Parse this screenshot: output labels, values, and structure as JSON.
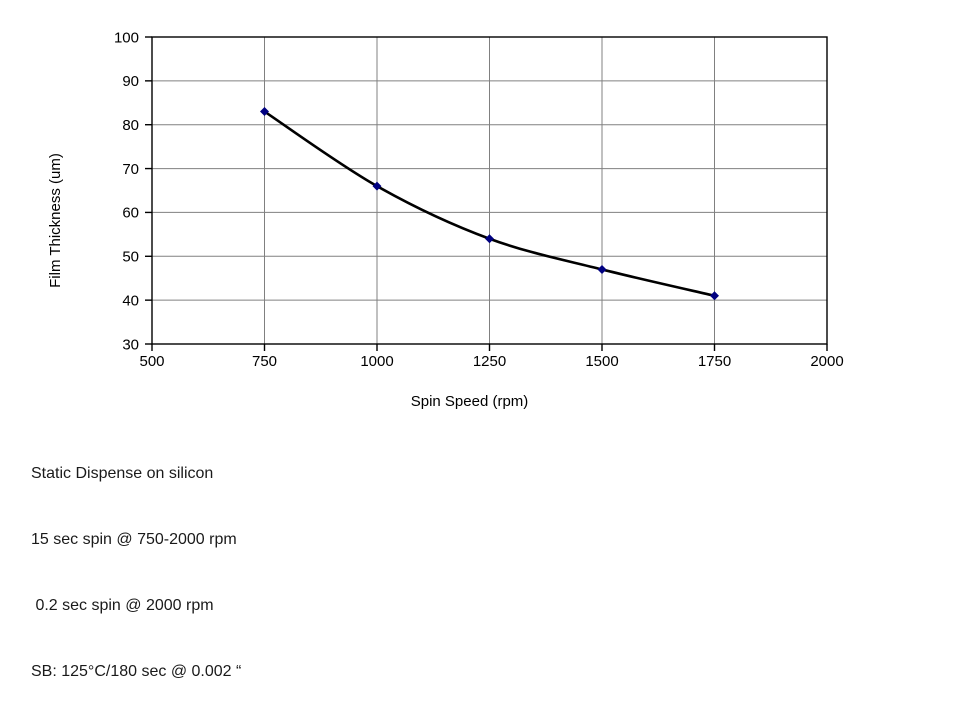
{
  "chart_data": {
    "type": "line",
    "title": "",
    "xlabel": "Spin Speed (rpm)",
    "ylabel": "Film Thickness (um)",
    "x": [
      750,
      1000,
      1250,
      1500,
      1750
    ],
    "y": [
      83,
      66,
      54,
      47,
      41
    ],
    "series": [
      {
        "name": "Film Thickness",
        "x": [
          750,
          1000,
          1250,
          1500,
          1750
        ],
        "values": [
          83,
          66,
          54,
          47,
          41
        ]
      }
    ],
    "xlim": [
      500,
      2000
    ],
    "ylim": [
      30,
      100
    ],
    "xticks": [
      500,
      750,
      1000,
      1250,
      1500,
      1750,
      2000
    ],
    "yticks": [
      30,
      40,
      50,
      60,
      70,
      80,
      90,
      100
    ],
    "grid": true,
    "legend": "none",
    "smooth_line": true,
    "line_color": "#000000",
    "marker": "diamond",
    "marker_color": "#000080",
    "gridline_color": "#808080",
    "axis_color": "#000000",
    "background": "#ffffff"
  },
  "notes": {
    "lines": [
      "Static Dispense on silicon",
      "15 sec spin @ 750-2000 rpm",
      " 0.2 sec spin @ 2000 rpm",
      "SB: 125°C/180 sec @ 0.002 “"
    ]
  }
}
